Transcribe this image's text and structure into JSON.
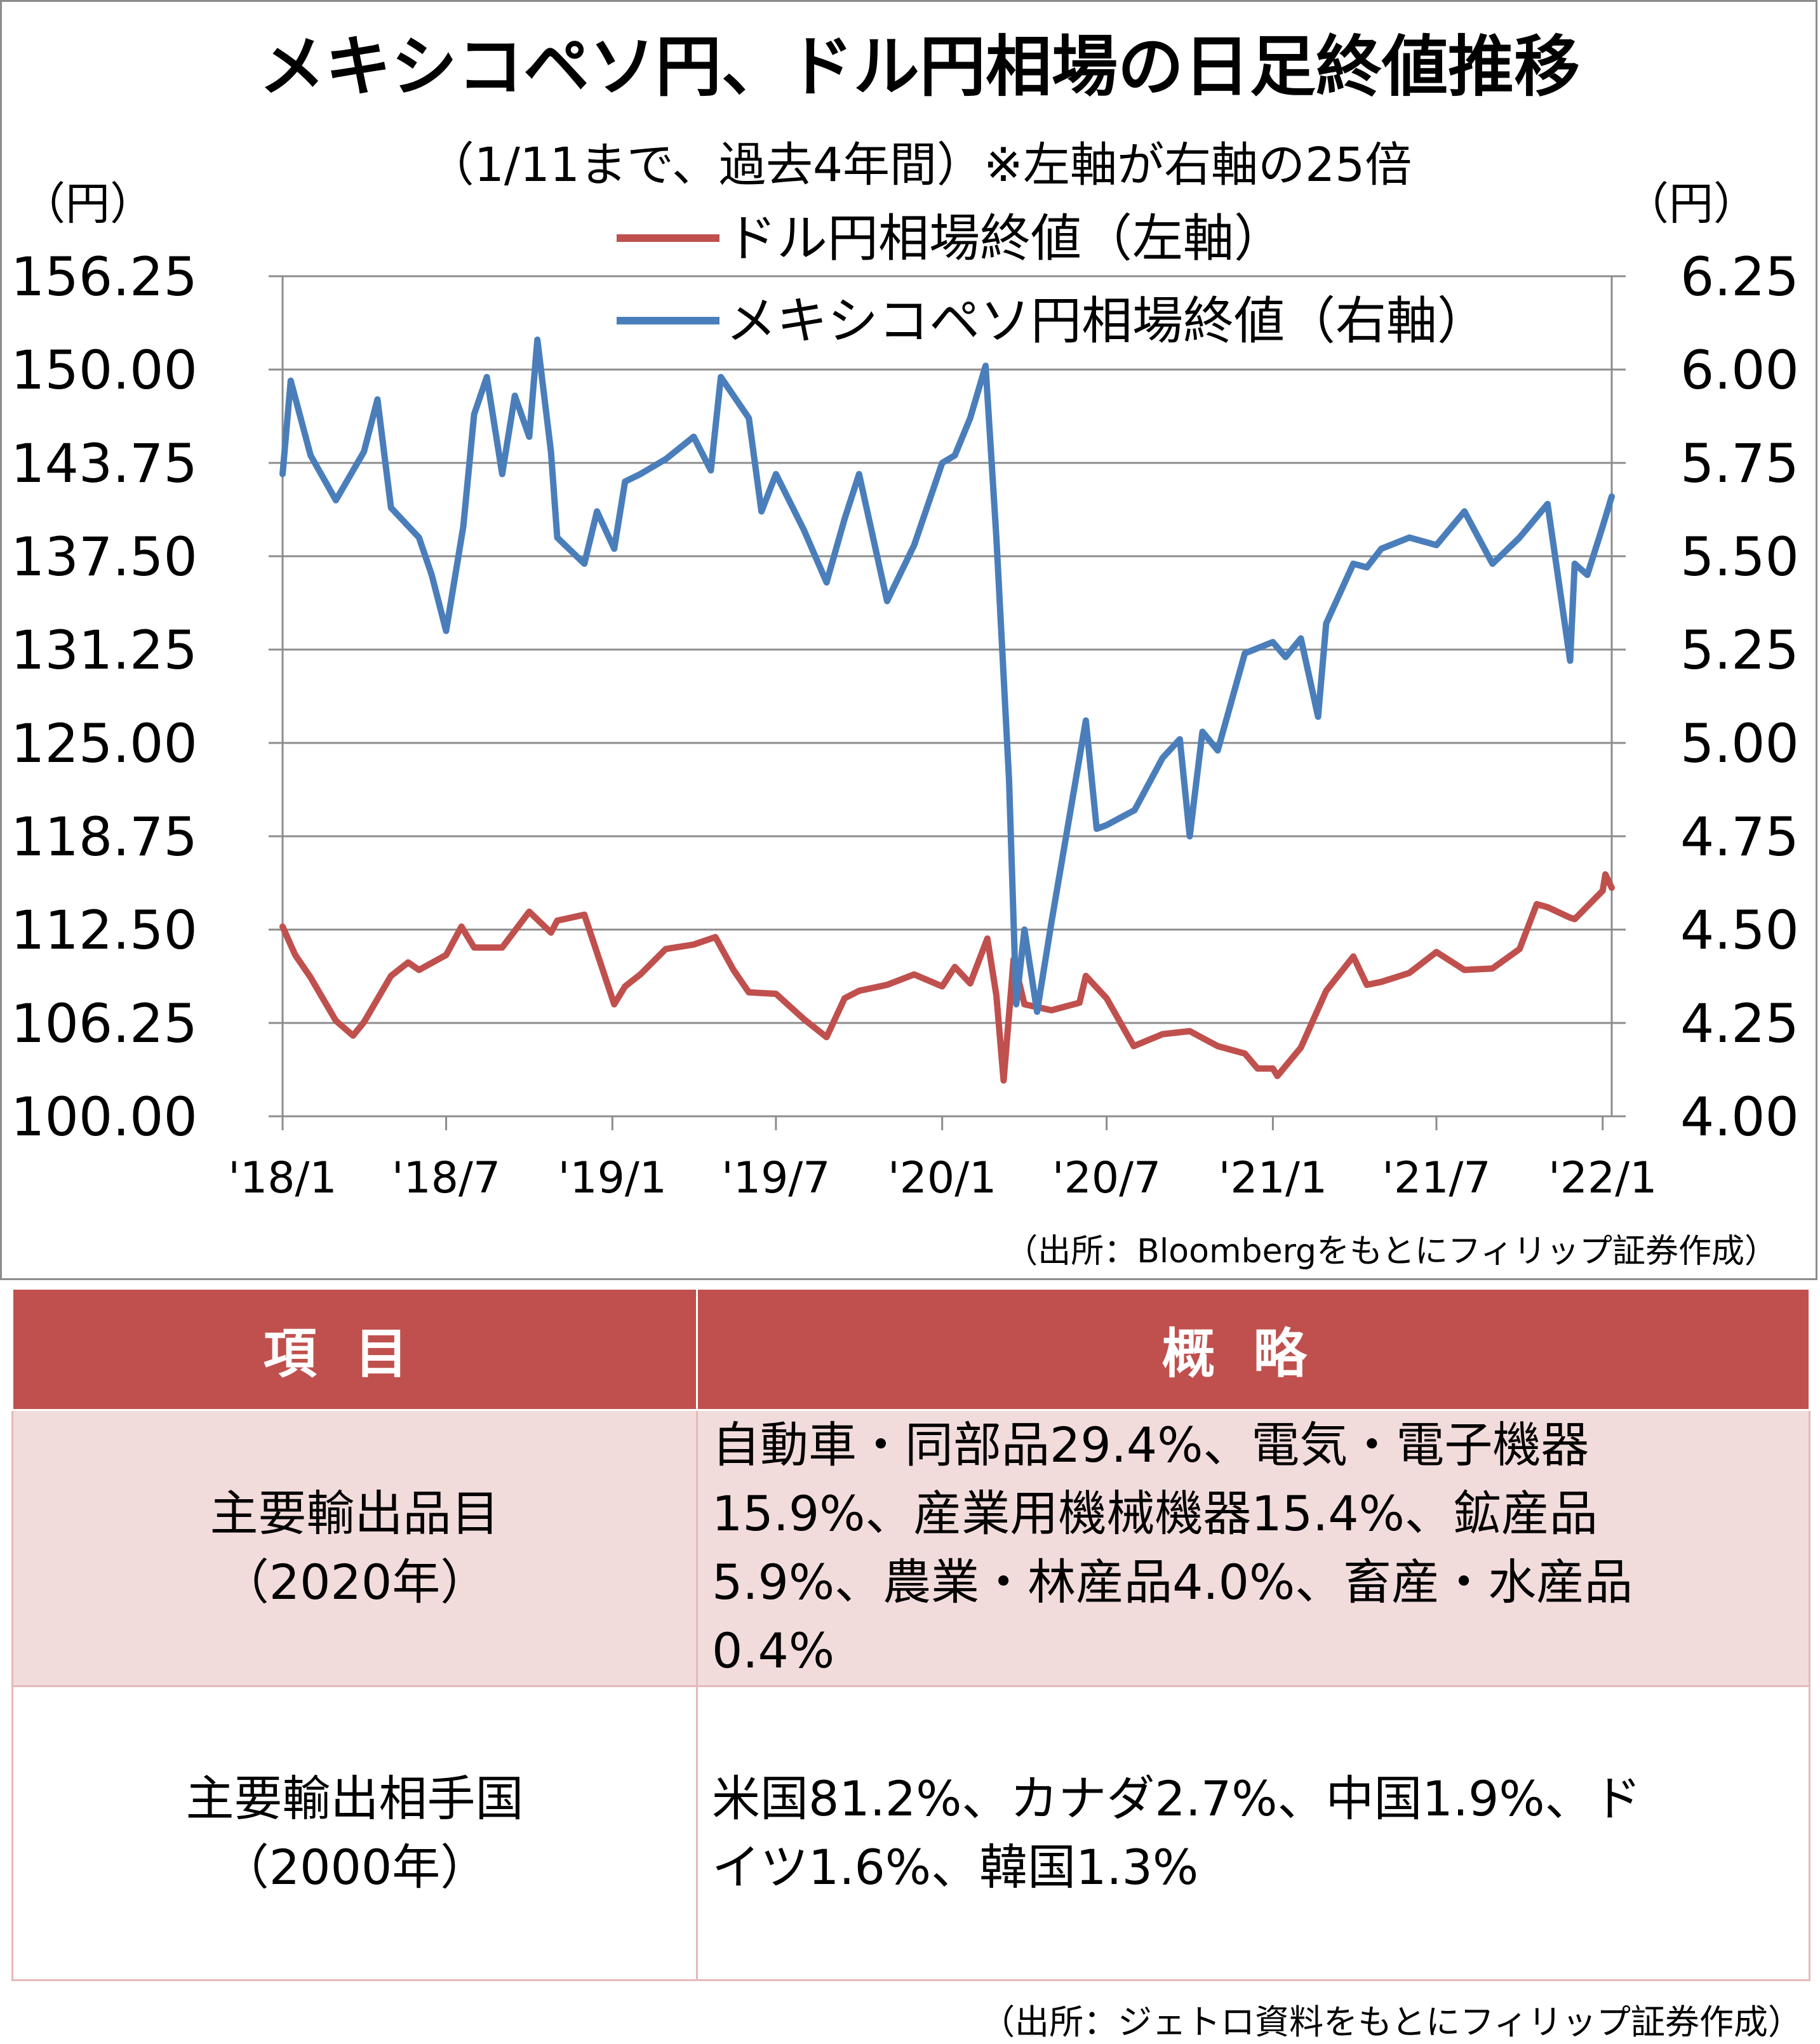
{
  "chart_data": {
    "type": "line",
    "title": "メキシコペソ円、ドル円相場の日足終値推移",
    "subtitle": "（1/11まで、過去4年間）※左軸が右軸の25倍",
    "left_axis": {
      "unit": "（円）",
      "range": [
        100,
        156.25
      ],
      "ticks": [
        "156.25",
        "150.00",
        "143.75",
        "137.50",
        "131.25",
        "125.00",
        "118.75",
        "112.50",
        "106.25",
        "100.00"
      ]
    },
    "right_axis": {
      "unit": "（円）",
      "range": [
        4.0,
        6.25
      ],
      "ticks": [
        "6.25",
        "6.00",
        "5.75",
        "5.50",
        "5.25",
        "5.00",
        "4.75",
        "4.50",
        "4.25",
        "4.00"
      ]
    },
    "x_axis": {
      "range": [
        "2018-01-01",
        "2022-01-11"
      ],
      "ticks": [
        {
          "date": "2018-01-01",
          "label": "'18/1"
        },
        {
          "date": "2018-07-01",
          "label": "'18/7"
        },
        {
          "date": "2019-01-01",
          "label": "'19/1"
        },
        {
          "date": "2019-07-01",
          "label": "'19/7"
        },
        {
          "date": "2020-01-01",
          "label": "'20/1"
        },
        {
          "date": "2020-07-01",
          "label": "'20/7"
        },
        {
          "date": "2021-01-01",
          "label": "'21/1"
        },
        {
          "date": "2021-07-01",
          "label": "'21/7"
        },
        {
          "date": "2022-01-01",
          "label": "'22/1"
        }
      ]
    },
    "grid": true,
    "legend_position": "top-center",
    "series": [
      {
        "name": "ドル円相場終値（左軸）",
        "axis": "left",
        "color": "#c0504d",
        "x": [
          "2018-01-01",
          "2018-01-15",
          "2018-02-01",
          "2018-03-01",
          "2018-03-20",
          "2018-04-01",
          "2018-05-01",
          "2018-05-20",
          "2018-06-01",
          "2018-07-01",
          "2018-07-18",
          "2018-08-01",
          "2018-09-01",
          "2018-10-01",
          "2018-10-25",
          "2018-11-01",
          "2018-12-01",
          "2019-01-03",
          "2019-01-15",
          "2019-02-01",
          "2019-03-01",
          "2019-04-01",
          "2019-04-25",
          "2019-05-15",
          "2019-06-01",
          "2019-07-01",
          "2019-08-01",
          "2019-08-26",
          "2019-09-15",
          "2019-10-01",
          "2019-11-01",
          "2019-12-01",
          "2020-01-01",
          "2020-01-15",
          "2020-02-01",
          "2020-02-20",
          "2020-03-01",
          "2020-03-09",
          "2020-03-20",
          "2020-04-01",
          "2020-05-01",
          "2020-06-01",
          "2020-06-08",
          "2020-07-01",
          "2020-07-31",
          "2020-09-01",
          "2020-10-01",
          "2020-11-01",
          "2020-12-01",
          "2020-12-15",
          "2021-01-01",
          "2021-01-06",
          "2021-02-01",
          "2021-03-01",
          "2021-03-31",
          "2021-04-15",
          "2021-05-01",
          "2021-06-01",
          "2021-07-01",
          "2021-08-01",
          "2021-09-01",
          "2021-10-01",
          "2021-10-20",
          "2021-11-01",
          "2021-11-26",
          "2021-12-01",
          "2022-01-01",
          "2022-01-04",
          "2022-01-11"
        ],
        "values": [
          112.7,
          110.8,
          109.3,
          106.4,
          105.4,
          106.3,
          109.4,
          110.3,
          109.8,
          110.8,
          112.7,
          111.3,
          111.3,
          113.7,
          112.3,
          113.1,
          113.5,
          107.5,
          108.7,
          109.5,
          111.2,
          111.5,
          112.0,
          109.8,
          108.3,
          108.2,
          106.5,
          105.3,
          107.9,
          108.4,
          108.8,
          109.5,
          108.7,
          110.0,
          108.9,
          111.9,
          108.1,
          102.4,
          110.5,
          107.5,
          107.1,
          107.6,
          109.4,
          107.9,
          104.7,
          105.5,
          105.7,
          104.7,
          104.2,
          103.2,
          103.2,
          102.7,
          104.6,
          108.4,
          110.7,
          108.8,
          109.0,
          109.6,
          111.0,
          109.8,
          109.9,
          111.2,
          114.2,
          114.0,
          113.3,
          113.2,
          115.1,
          116.2,
          115.3
        ]
      },
      {
        "name": "メキシコペソ円相場終値（右軸）",
        "axis": "right",
        "color": "#4a7ebb",
        "x": [
          "2018-01-01",
          "2018-01-10",
          "2018-02-01",
          "2018-03-01",
          "2018-04-01",
          "2018-04-16",
          "2018-05-01",
          "2018-06-01",
          "2018-06-15",
          "2018-07-01",
          "2018-07-20",
          "2018-08-01",
          "2018-08-15",
          "2018-09-01",
          "2018-09-15",
          "2018-10-01",
          "2018-10-10",
          "2018-10-25",
          "2018-11-01",
          "2018-12-01",
          "2018-12-15",
          "2019-01-03",
          "2019-01-15",
          "2019-02-01",
          "2019-03-01",
          "2019-04-01",
          "2019-04-20",
          "2019-05-01",
          "2019-06-01",
          "2019-06-15",
          "2019-07-01",
          "2019-08-01",
          "2019-08-26",
          "2019-09-15",
          "2019-10-01",
          "2019-11-01",
          "2019-12-01",
          "2020-01-01",
          "2020-01-15",
          "2020-02-01",
          "2020-02-18",
          "2020-03-01",
          "2020-03-15",
          "2020-03-23",
          "2020-04-01",
          "2020-04-15",
          "2020-05-01",
          "2020-06-08",
          "2020-06-20",
          "2020-07-01",
          "2020-08-01",
          "2020-09-01",
          "2020-09-20",
          "2020-10-01",
          "2020-10-15",
          "2020-11-01",
          "2020-12-01",
          "2021-01-01",
          "2021-01-15",
          "2021-02-01",
          "2021-02-20",
          "2021-03-01",
          "2021-03-31",
          "2021-04-15",
          "2021-05-01",
          "2021-06-01",
          "2021-07-01",
          "2021-08-01",
          "2021-09-01",
          "2021-10-01",
          "2021-11-01",
          "2021-11-26",
          "2021-12-01",
          "2021-12-15",
          "2022-01-01",
          "2022-01-11"
        ],
        "values": [
          5.72,
          5.97,
          5.77,
          5.65,
          5.78,
          5.92,
          5.63,
          5.55,
          5.45,
          5.3,
          5.58,
          5.88,
          5.98,
          5.72,
          5.93,
          5.82,
          6.08,
          5.78,
          5.55,
          5.48,
          5.62,
          5.52,
          5.7,
          5.72,
          5.76,
          5.82,
          5.73,
          5.98,
          5.87,
          5.62,
          5.72,
          5.57,
          5.43,
          5.6,
          5.72,
          5.38,
          5.53,
          5.75,
          5.77,
          5.87,
          6.01,
          5.55,
          4.9,
          4.3,
          4.5,
          4.28,
          4.52,
          5.06,
          4.77,
          4.78,
          4.82,
          4.96,
          5.01,
          4.75,
          5.03,
          4.98,
          5.24,
          5.27,
          5.23,
          5.28,
          5.07,
          5.32,
          5.48,
          5.47,
          5.52,
          5.55,
          5.53,
          5.62,
          5.48,
          5.55,
          5.64,
          5.22,
          5.48,
          5.45,
          5.58,
          5.66
        ]
      }
    ]
  },
  "chart_source": "（出所：Bloombergをもとにフィリップ証券作成）",
  "table": {
    "headers": [
      "項目",
      "概略"
    ],
    "rows": [
      {
        "item_lines": [
          "主要輸出品目",
          "（2020年）"
        ],
        "desc_lines": [
          "自動車・同部品29.4%、電気・電子機器",
          "15.9%、産業用機械機器15.4%、鉱産品",
          "5.9%、農業・林産品4.0%、畜産・水産品",
          "0.4%"
        ]
      },
      {
        "item_lines": [
          "主要輸出相手国",
          "（2000年）"
        ],
        "desc_lines": [
          "米国81.2%、カナダ2.7%、中国1.9%、ド",
          "イツ1.6%、韓国1.3%"
        ]
      }
    ],
    "source": "（出所：ジェトロ資料をもとにフィリップ証券作成）"
  }
}
